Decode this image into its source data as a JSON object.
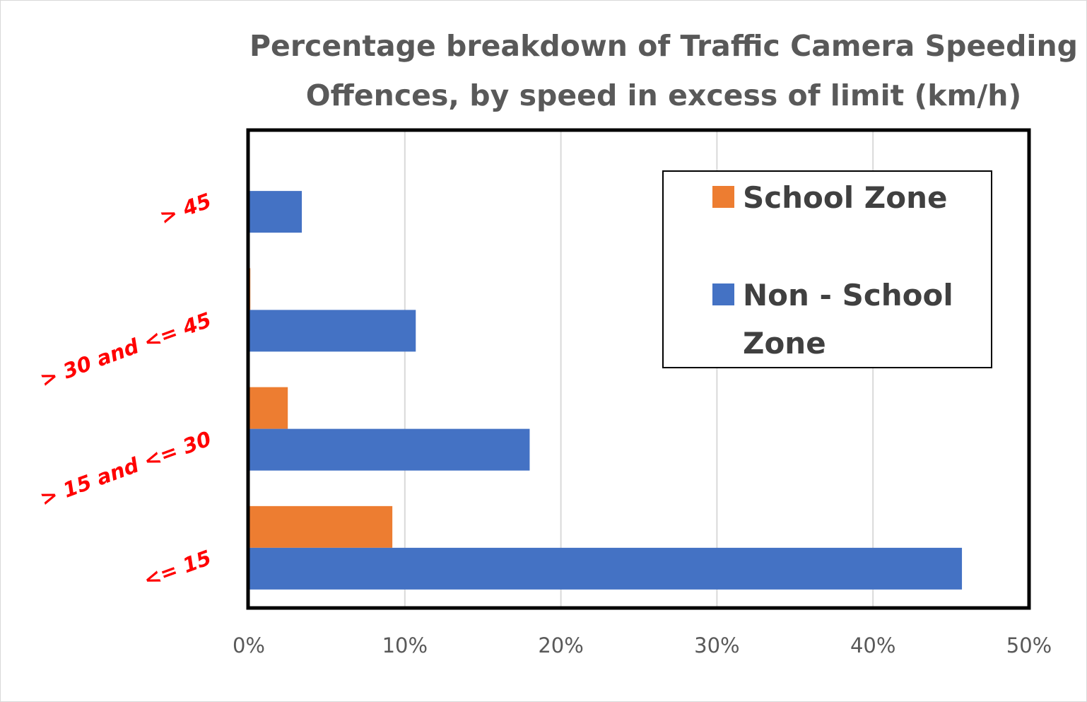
{
  "chart_data": {
    "type": "bar",
    "orientation": "horizontal",
    "title": "Percentage breakdown of Traffic Camera Speeding Offences, by speed in excess of limit (km/h)",
    "title_lines": [
      "Percentage breakdown of Traffic Camera Speeding",
      "Offences, by speed in excess of limit (km/h)"
    ],
    "categories": [
      "<= 15",
      "> 15 and <= 30",
      "> 30 and <= 45",
      "> 45"
    ],
    "series": [
      {
        "name": "School Zone",
        "color": "#ed7d31",
        "values": [
          9.2,
          2.5,
          0.1,
          0.0
        ]
      },
      {
        "name": "Non - School Zone",
        "color": "#4472c4",
        "values": [
          45.7,
          18.0,
          10.7,
          3.4
        ]
      }
    ],
    "xlim": [
      0,
      50
    ],
    "x_ticks": [
      "0%",
      "10%",
      "20%",
      "30%",
      "40%",
      "50%"
    ],
    "xlabel": "",
    "ylabel": "",
    "grid": true,
    "legend": {
      "placement": "top-right",
      "entries": [
        {
          "lines": [
            "School Zone"
          ],
          "color": "#ed7d31"
        },
        {
          "lines": [
            "Non - School",
            "Zone"
          ],
          "color": "#4472c4"
        }
      ]
    },
    "category_label_color": "#ff0000"
  }
}
